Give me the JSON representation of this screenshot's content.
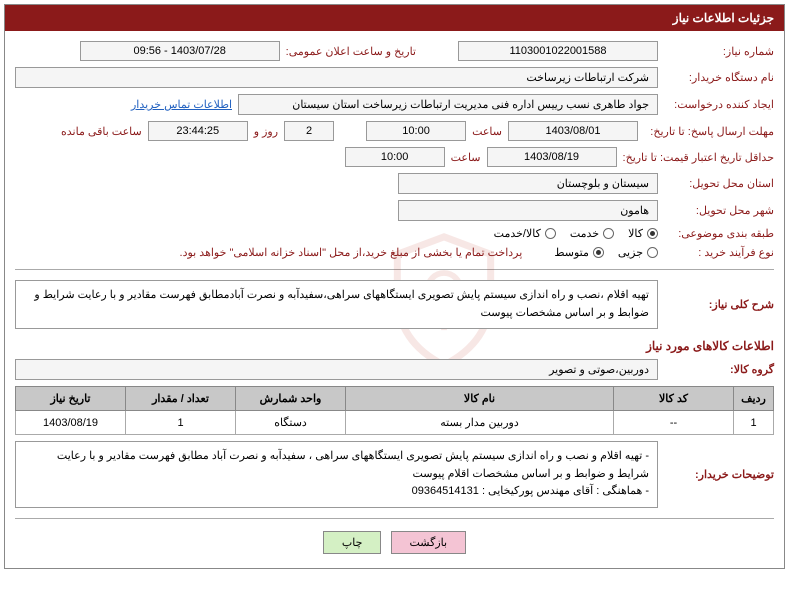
{
  "header": {
    "title": "جزئیات اطلاعات نیاز"
  },
  "fields": {
    "need_number": {
      "label": "شماره نیاز:",
      "value": "1103001022001588"
    },
    "announce_dt": {
      "label": "تاریخ و ساعت اعلان عمومی:",
      "value": "1403/07/28 - 09:56"
    },
    "buyer_org": {
      "label": "نام دستگاه خریدار:",
      "value": "شرکت ارتباطات زیرساخت"
    },
    "requester": {
      "label": "ایجاد کننده درخواست:",
      "value": "جواد طاهری نسب رییس اداره فنی مدیریت ارتباطات زیرساخت استان سیستان"
    },
    "contact_link": "اطلاعات تماس خریدار",
    "response_deadline": {
      "label": "مهلت ارسال پاسخ: تا تاریخ:",
      "date": "1403/08/01",
      "time_label": "ساعت",
      "time": "10:00"
    },
    "countdown": {
      "days": "2",
      "days_label": "روز و",
      "time": "23:44:25",
      "remain_label": "ساعت باقی مانده"
    },
    "validity_min": {
      "label": "حداقل تاریخ اعتبار قیمت: تا تاریخ:",
      "date": "1403/08/19",
      "time_label": "ساعت",
      "time": "10:00"
    },
    "delivery_province": {
      "label": "استان محل تحویل:",
      "value": "سیستان و بلوچستان"
    },
    "delivery_city": {
      "label": "شهر محل تحویل:",
      "value": "هامون"
    },
    "category": {
      "label": "طبقه بندی موضوعی:",
      "options": [
        "کالا",
        "خدمت",
        "کالا/خدمت"
      ],
      "selected": 0
    },
    "process_type": {
      "label": "نوع فرآیند خرید :",
      "options": [
        "جزیی",
        "متوسط"
      ],
      "selected": 1,
      "note": "پرداخت تمام یا بخشی از مبلغ خرید،از محل \"اسناد خزانه اسلامی\" خواهد بود."
    },
    "need_summary": {
      "label": "شرح کلی نیاز:",
      "value": "تهیه اقلام ،نصب و راه اندازی سیستم پایش تصویری ایستگاههای سراهی،سفیدآبه و نصرت آبادمطابق فهرست مقادیر و با رعایت شرایط و ضوابط و بر اساس مشخصات پیوست"
    },
    "goods_section_title": "اطلاعات کالاهای مورد نیاز",
    "goods_group": {
      "label": "گروه کالا:",
      "value": "دوربین،صوتی و تصویر"
    },
    "buyer_notes": {
      "label": "توضیحات خریدار:",
      "value": "- تهیه اقلام و نصب و راه اندازی سیستم پایش تصویری ایستگاههای سراهی ، سفیدآبه و نصرت آباد مطابق فهرست مقادیر و با رعایت شرایط و ضوابط و بر اساس مشخصات اقلام پیوست\n- هماهنگی : آقای مهندس پورکیخایی : 09364514131"
    }
  },
  "table": {
    "columns": [
      "ردیف",
      "کد کالا",
      "نام کالا",
      "واحد شمارش",
      "تعداد / مقدار",
      "تاریخ نیاز"
    ],
    "col_widths": [
      "40px",
      "120px",
      "auto",
      "110px",
      "110px",
      "110px"
    ],
    "rows": [
      [
        "1",
        "--",
        "دوربین مدار بسته",
        "دستگاه",
        "1",
        "1403/08/19"
      ]
    ]
  },
  "buttons": {
    "print": "چاپ",
    "back": "بازگشت"
  },
  "colors": {
    "brand": "#8b1a1a",
    "link": "#2060c0",
    "th_bg": "#c8c8c8",
    "btn_print": "#d4f0c4",
    "btn_back": "#f4c4d4"
  }
}
